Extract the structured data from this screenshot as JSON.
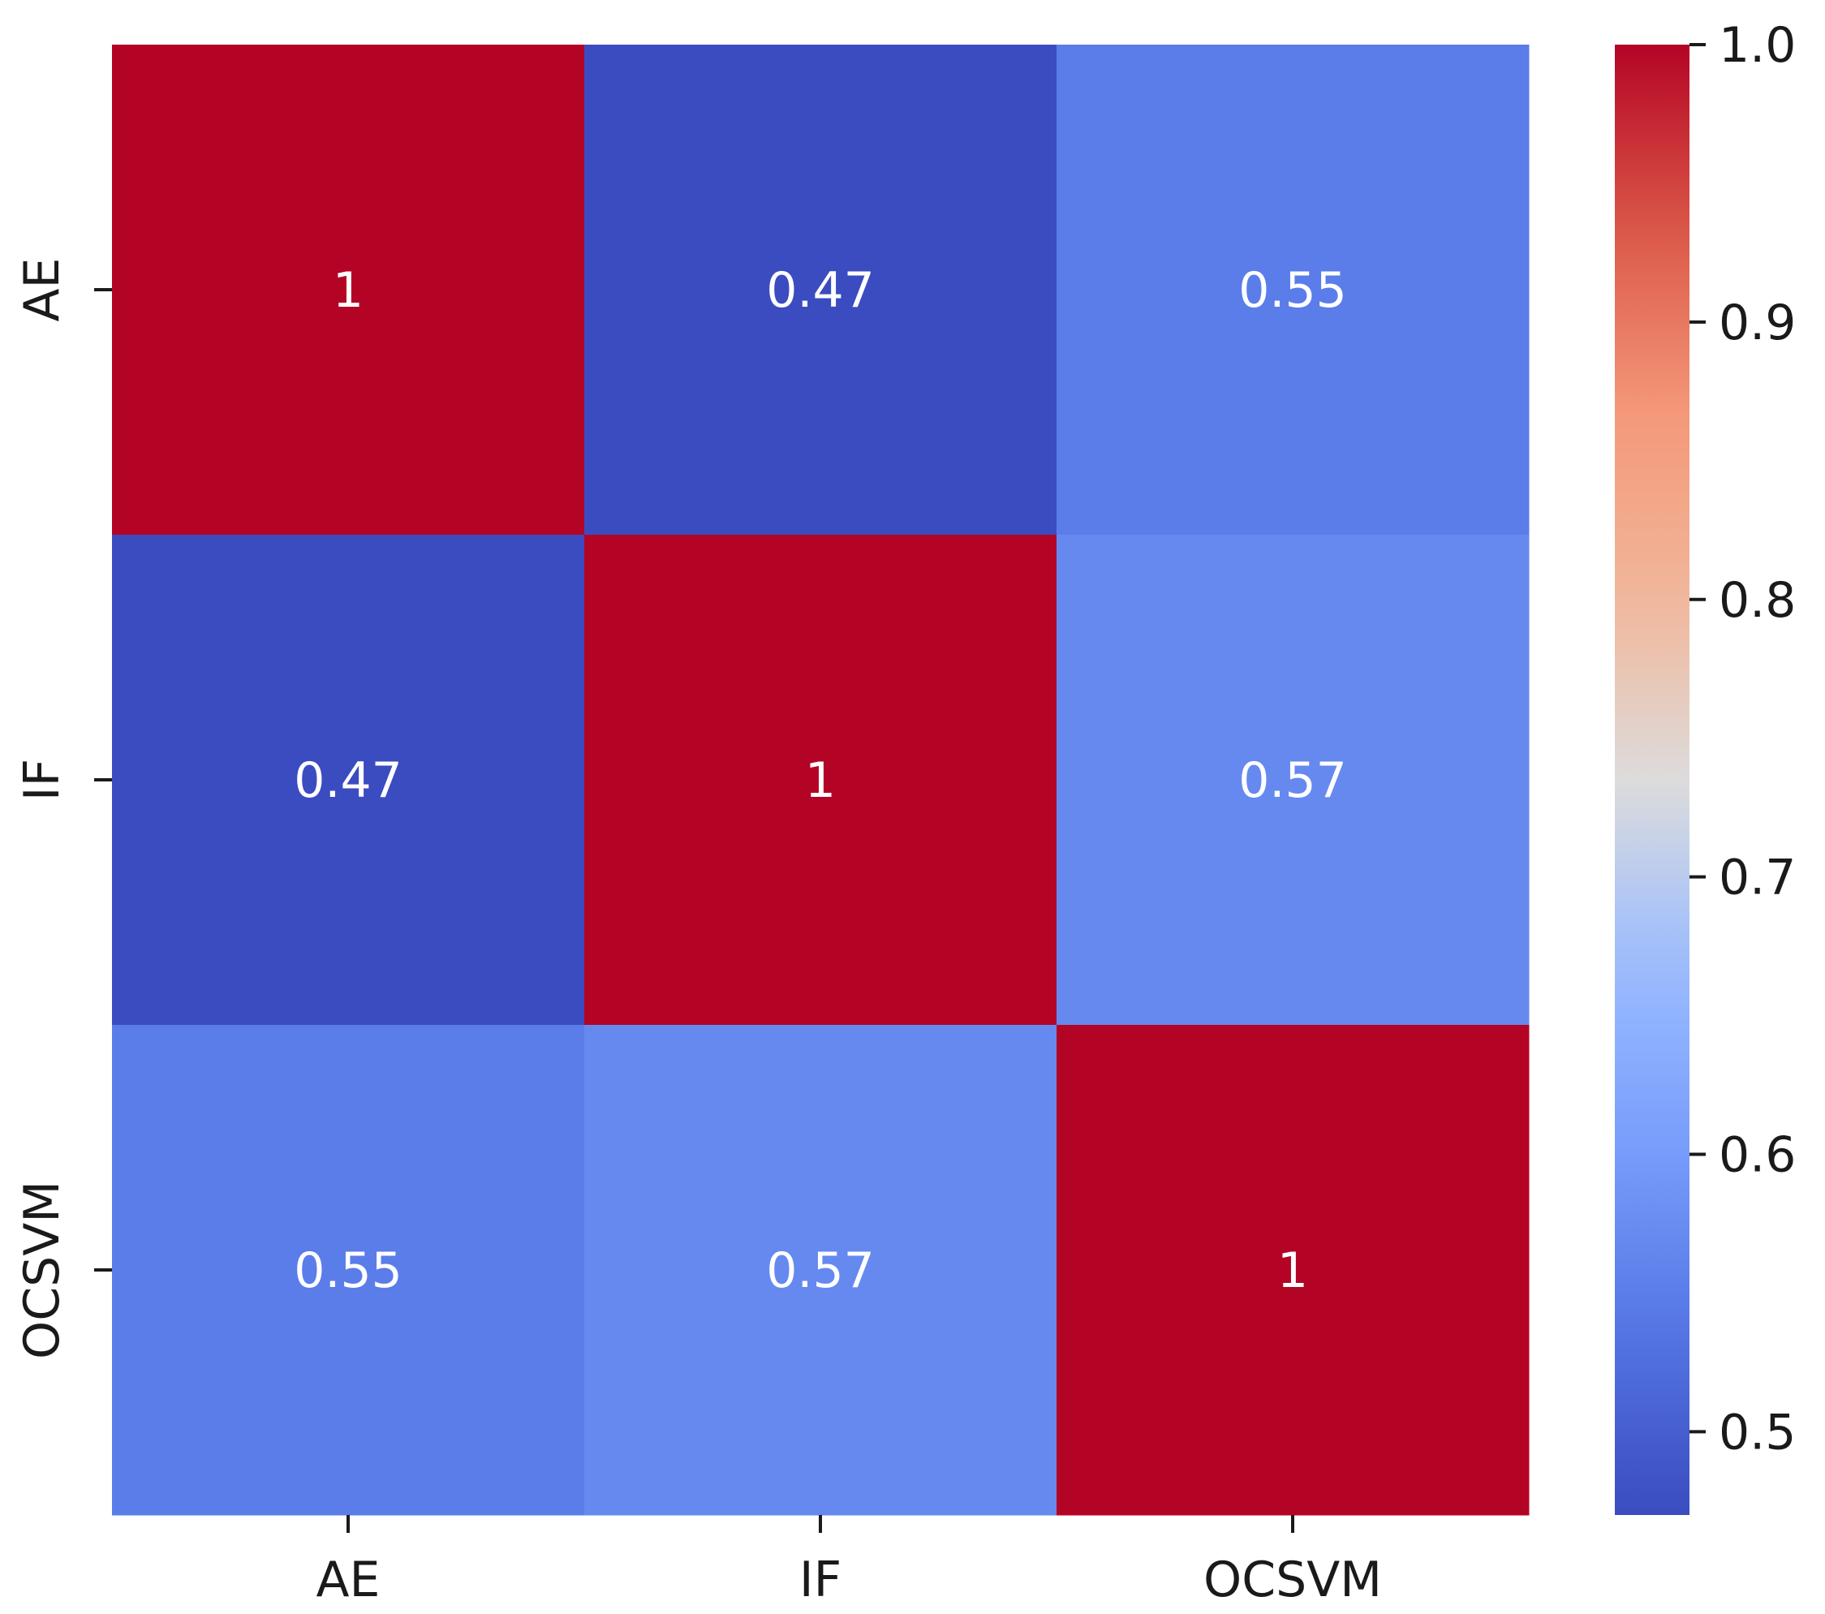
{
  "chart_data": {
    "type": "heatmap",
    "title": "",
    "xlabel": "",
    "ylabel": "",
    "categories_x": [
      "AE",
      "IF",
      "OCSVM"
    ],
    "categories_y": [
      "AE",
      "IF",
      "OCSVM"
    ],
    "values": [
      [
        1.0,
        0.47,
        0.55
      ],
      [
        0.47,
        1.0,
        0.57
      ],
      [
        0.55,
        0.57,
        1.0
      ]
    ],
    "annotations": [
      [
        "1",
        "0.47",
        "0.55"
      ],
      [
        "0.47",
        "1",
        "0.57"
      ],
      [
        "0.55",
        "0.57",
        "1"
      ]
    ],
    "colormap": "coolwarm",
    "colorbar": {
      "range": [
        0.47,
        1.0
      ],
      "ticks": [
        0.5,
        0.6,
        0.7,
        0.8,
        0.9,
        1.0
      ],
      "tick_labels": [
        "0.5",
        "0.6",
        "0.7",
        "0.8",
        "0.9",
        "1.0"
      ],
      "placement": "right"
    },
    "colors": {
      "low": "#3b4cc0",
      "mid": "#dddcdc",
      "high": "#b40426",
      "annotation_text": "#ffffff",
      "axis_text": "#1a1a1a"
    }
  }
}
